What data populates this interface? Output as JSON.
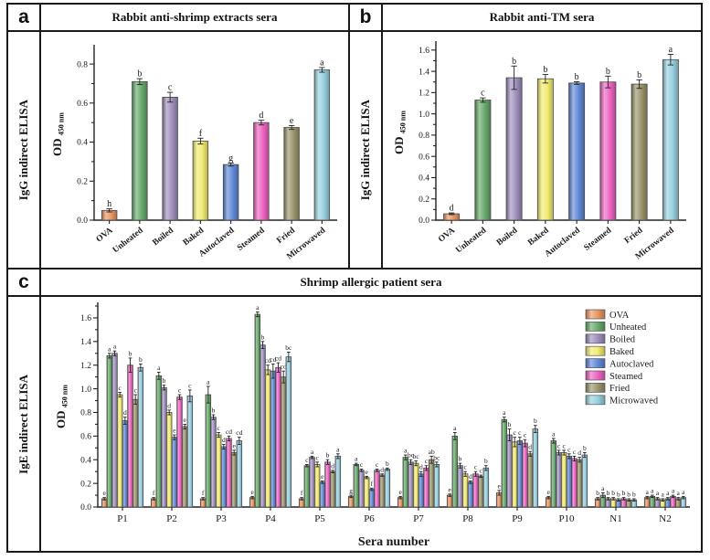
{
  "chart_data": [
    {
      "type": "bar",
      "tag": "a",
      "title": "Rabbit anti-shrimp extracts sera",
      "row_label": "IgG indirect ELISA",
      "ylabel_main": "OD",
      "ylabel_sub": "450 nm",
      "ylim": [
        0,
        0.88
      ],
      "ytick_step": 0.2,
      "categories": [
        "OVA",
        "Unheated",
        "Boiled",
        "Baked",
        "Autoclaved",
        "Steamed",
        "Fried",
        "Microwaved"
      ],
      "values": [
        0.05,
        0.71,
        0.63,
        0.405,
        0.285,
        0.5,
        0.475,
        0.77
      ],
      "errors": [
        0.008,
        0.015,
        0.025,
        0.015,
        0.008,
        0.012,
        0.01,
        0.012
      ],
      "sig_letters": [
        "h",
        "b",
        "c",
        "f",
        "g",
        "d",
        "e",
        "a"
      ],
      "bar_colors": [
        "#E8935C",
        "#62A766",
        "#9C8CBB",
        "#F2EB6C",
        "#5C85D6",
        "#EC5FC0",
        "#989167",
        "#94CFDE"
      ]
    },
    {
      "type": "bar",
      "tag": "b",
      "title": "Rabbit anti-TM sera",
      "row_label": "IgG indirect ELISA",
      "ylabel_main": "OD",
      "ylabel_sub": "450 nm",
      "ylim": [
        0,
        1.65
      ],
      "ytick_step": 0.2,
      "categories": [
        "OVA",
        "Unheated",
        "Boiled",
        "Baked",
        "Autoclaved",
        "Steamed",
        "Fried",
        "Microwaved"
      ],
      "values": [
        0.06,
        1.13,
        1.34,
        1.33,
        1.29,
        1.3,
        1.28,
        1.51
      ],
      "errors": [
        0.008,
        0.02,
        0.11,
        0.04,
        0.012,
        0.055,
        0.04,
        0.05
      ],
      "sig_letters": [
        "d",
        "c",
        "b",
        "b",
        "b",
        "b",
        "b",
        "a"
      ],
      "bar_colors": [
        "#E8935C",
        "#62A766",
        "#9C8CBB",
        "#F2EB6C",
        "#5C85D6",
        "#EC5FC0",
        "#989167",
        "#94CFDE"
      ]
    },
    {
      "type": "bar",
      "tag": "c",
      "title": "Shrimp allergic patient sera",
      "row_label": "IgE indirect ELISA",
      "ylabel_main": "OD",
      "ylabel_sub": "450 nm",
      "xlabel": "Sera number",
      "ylim": [
        0,
        1.7
      ],
      "ytick_step": 0.2,
      "legend": true,
      "legend_position": "top-right",
      "categories": [
        "P1",
        "P2",
        "P3",
        "P4",
        "P5",
        "P6",
        "P7",
        "P8",
        "P9",
        "P10",
        "N1",
        "N2"
      ],
      "series": [
        {
          "name": "OVA",
          "color": "#E8935C",
          "values": [
            0.07,
            0.07,
            0.07,
            0.08,
            0.07,
            0.09,
            0.08,
            0.1,
            0.12,
            0.08,
            0.07,
            0.08
          ],
          "errors": [
            0.01,
            0.01,
            0.01,
            0.01,
            0.01,
            0.01,
            0.01,
            0.01,
            0.02,
            0.01,
            0.01,
            0.01
          ],
          "letters": [
            "e",
            "f",
            "f",
            "e",
            "f",
            "g",
            "e",
            "e",
            "e",
            "e",
            "b",
            "a"
          ]
        },
        {
          "name": "Unheated",
          "color": "#62A766",
          "values": [
            1.28,
            1.11,
            0.95,
            1.63,
            0.35,
            0.36,
            0.42,
            0.6,
            0.74,
            0.56,
            0.1,
            0.09
          ],
          "errors": [
            0.02,
            0.03,
            0.07,
            0.02,
            0.01,
            0.01,
            0.02,
            0.03,
            0.02,
            0.02,
            0.02,
            0.01
          ],
          "letters": [
            "a",
            "a",
            "a",
            "a",
            "c",
            "a",
            "a",
            "a",
            "a",
            "a",
            "a",
            "a"
          ]
        },
        {
          "name": "Boiled",
          "color": "#9C8CBB",
          "values": [
            1.3,
            1.01,
            0.76,
            1.37,
            0.42,
            0.31,
            0.38,
            0.35,
            0.61,
            0.46,
            0.07,
            0.07
          ],
          "errors": [
            0.02,
            0.02,
            0.02,
            0.03,
            0.01,
            0.01,
            0.02,
            0.02,
            0.05,
            0.02,
            0.01,
            0.01
          ],
          "letters": [
            "a",
            "b",
            "b",
            "b",
            "a",
            "c",
            "bc",
            "b",
            "b",
            "c",
            "b",
            "a"
          ]
        },
        {
          "name": "Baked",
          "color": "#F2EB6C",
          "values": [
            0.95,
            0.8,
            0.61,
            1.16,
            0.36,
            0.25,
            0.37,
            0.28,
            0.55,
            0.46,
            0.07,
            0.06
          ],
          "errors": [
            0.02,
            0.02,
            0.02,
            0.04,
            0.02,
            0.01,
            0.02,
            0.02,
            0.04,
            0.02,
            0.01,
            0.01
          ],
          "letters": [
            "c",
            "d",
            "c",
            "cd",
            "c",
            "e",
            "bc",
            "c",
            "c",
            "c",
            "b",
            "a"
          ]
        },
        {
          "name": "Autoclaved",
          "color": "#5C85D6",
          "values": [
            0.73,
            0.59,
            0.51,
            1.15,
            0.21,
            0.15,
            0.28,
            0.21,
            0.56,
            0.43,
            0.06,
            0.07
          ],
          "errors": [
            0.03,
            0.02,
            0.02,
            0.06,
            0.01,
            0.01,
            0.02,
            0.01,
            0.03,
            0.02,
            0.01,
            0.01
          ],
          "letters": [
            "d",
            "e",
            "d",
            "cd",
            "e",
            "f",
            "d",
            "d",
            "c",
            "c",
            "b",
            "a"
          ]
        },
        {
          "name": "Steamed",
          "color": "#EC5FC0",
          "values": [
            1.2,
            0.93,
            0.58,
            1.18,
            0.38,
            0.31,
            0.33,
            0.28,
            0.54,
            0.41,
            0.07,
            0.09
          ],
          "errors": [
            0.06,
            0.02,
            0.02,
            0.04,
            0.02,
            0.01,
            0.02,
            0.02,
            0.03,
            0.02,
            0.01,
            0.01
          ],
          "letters": [
            "b",
            "c",
            "cd",
            "cd",
            "b",
            "c",
            "c",
            "c",
            "c",
            "c",
            "b",
            "a"
          ]
        },
        {
          "name": "Fried",
          "color": "#989167",
          "values": [
            0.91,
            0.68,
            0.46,
            1.1,
            0.3,
            0.27,
            0.4,
            0.26,
            0.45,
            0.4,
            0.06,
            0.07
          ],
          "errors": [
            0.04,
            0.02,
            0.02,
            0.05,
            0.01,
            0.01,
            0.03,
            0.01,
            0.02,
            0.02,
            0.01,
            0.01
          ],
          "letters": [
            "c",
            "e",
            "e",
            "cd",
            "d",
            "d",
            "ab",
            "c",
            "d",
            "d",
            "b",
            "a"
          ]
        },
        {
          "name": "Microwaved",
          "color": "#94CFDE",
          "values": [
            1.18,
            0.94,
            0.56,
            1.27,
            0.43,
            0.32,
            0.36,
            0.33,
            0.66,
            0.44,
            0.06,
            0.08
          ],
          "errors": [
            0.03,
            0.05,
            0.03,
            0.04,
            0.02,
            0.01,
            0.02,
            0.02,
            0.03,
            0.02,
            0.01,
            0.01
          ],
          "letters": [
            "b",
            "c",
            "cd",
            "bc",
            "a",
            "b",
            "bc",
            "b",
            "b",
            "b",
            "b",
            "a"
          ]
        }
      ]
    }
  ]
}
